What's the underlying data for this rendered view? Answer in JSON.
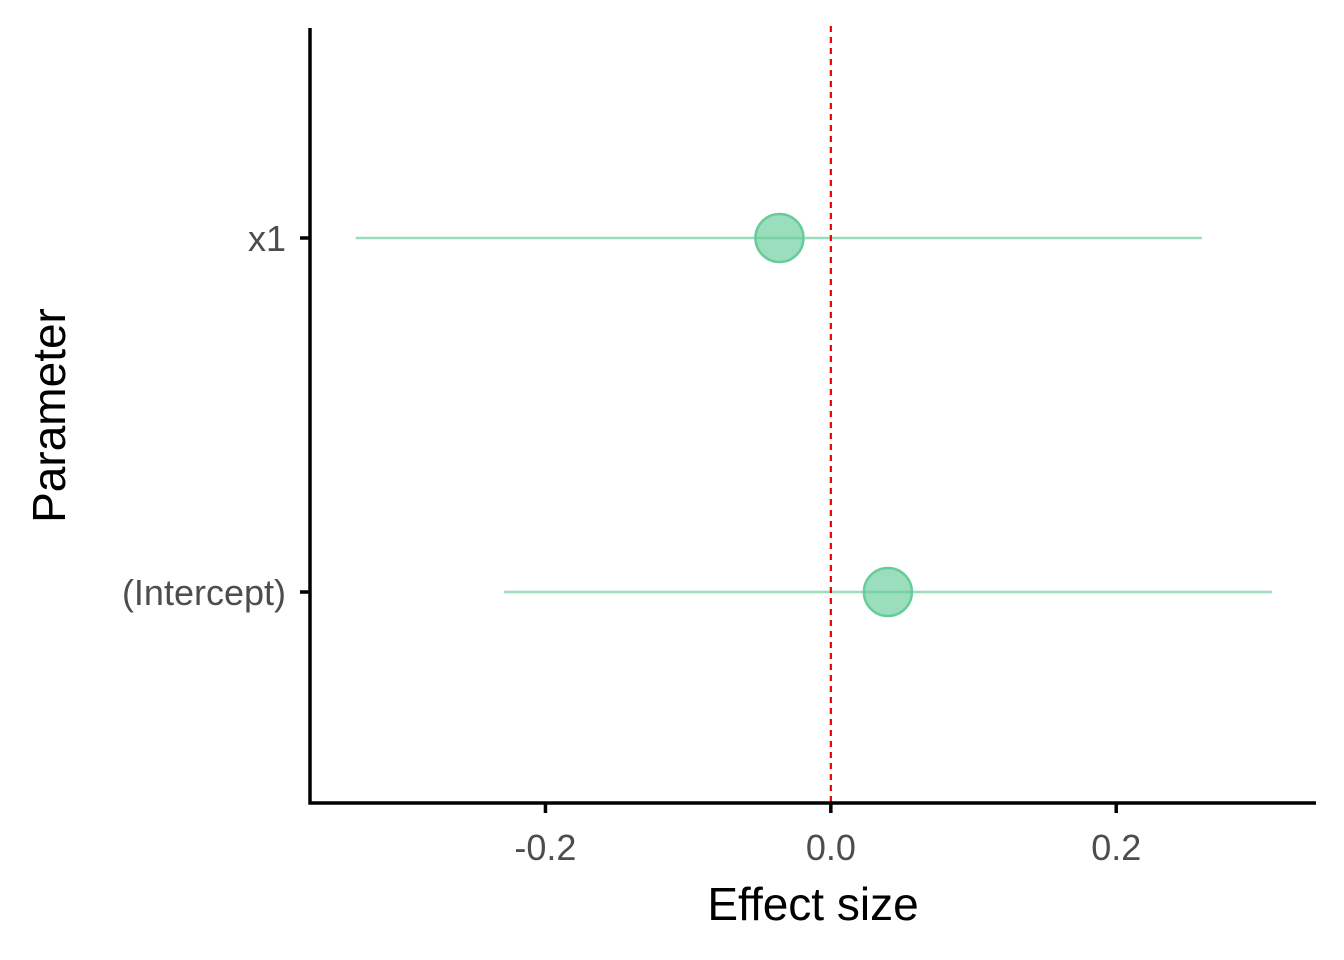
{
  "chart_data": {
    "type": "forest",
    "xlabel": "Effect size",
    "ylabel": "Parameter",
    "xlim": [
      -0.365,
      0.34
    ],
    "xticks": [
      -0.2,
      0.0,
      0.2
    ],
    "xtick_labels": [
      "-0.2",
      "0.0",
      "0.2"
    ],
    "reference_line": 0.0,
    "parameters": [
      {
        "name": "x1",
        "estimate": -0.036,
        "ci_low": -0.333,
        "ci_high": 0.26
      },
      {
        "name": "(Intercept)",
        "estimate": 0.04,
        "ci_low": -0.229,
        "ci_high": 0.309
      }
    ],
    "colors": {
      "point": "#66cc99",
      "interval": "#99ddbb",
      "reference_line": "#ee0000",
      "axis": "#000000"
    }
  }
}
